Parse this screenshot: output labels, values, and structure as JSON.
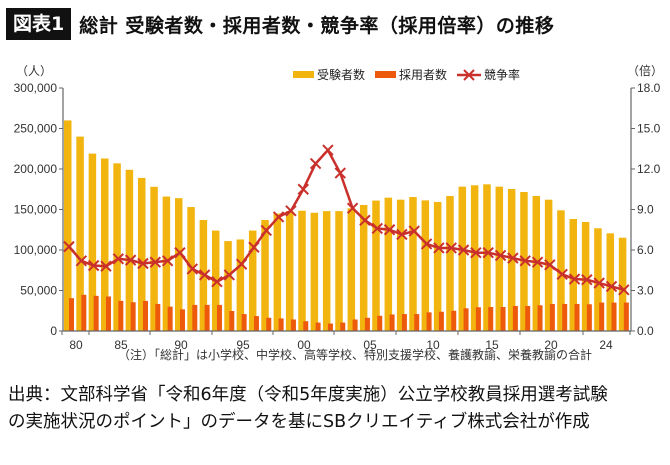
{
  "header": {
    "badge": "図表1",
    "title": "総計 受験者数・採用者数・競争率（採用倍率）の推移"
  },
  "axes": {
    "left_unit": "（人）",
    "right_unit": "（倍）",
    "left_ticks": [
      "0",
      "50,000",
      "100,000",
      "150,000",
      "200,000",
      "250,000",
      "300,000"
    ],
    "right_ticks": [
      "0.0",
      "3.0",
      "6.0",
      "9.0",
      "12.0",
      "15.0",
      "18.0"
    ],
    "x_labels": [
      "80",
      "85",
      "90",
      "95",
      "00",
      "05",
      "10",
      "15",
      "20",
      "24"
    ]
  },
  "legend": {
    "applicants": "受験者数",
    "hires": "採用者数",
    "ratio": "競争率"
  },
  "colors": {
    "applicants": "#F2B40F",
    "hires": "#EE5A0C",
    "ratio": "#C9302C",
    "axis": "#666666"
  },
  "note": "（注）「総計」は小学校、中学校、高等学校、特別支援学校、養護教諭、栄養教諭の合計",
  "source": {
    "line1": "出典：文部科学省「令和6年度（令和5年度実施）公立学校教員採用選考試験",
    "line2": "の実施状況のポイント」のデータを基にSBクリエイティブ株式会社が作成"
  },
  "chart_data": {
    "type": "bar",
    "title": "総計 受験者数・採用者数・競争率（採用倍率）の推移",
    "xlabel": "",
    "ylabel": "人",
    "y2label": "倍",
    "ylim": [
      0,
      300000
    ],
    "y2lim": [
      0,
      18
    ],
    "grid": false,
    "legend_position": "top-right",
    "categories": [
      "1979",
      "1980",
      "1981",
      "1982",
      "1983",
      "1984",
      "1985",
      "1986",
      "1987",
      "1988",
      "1989",
      "1990",
      "1991",
      "1992",
      "1993",
      "1994",
      "1995",
      "1996",
      "1997",
      "1998",
      "1999",
      "2000",
      "2001",
      "2002",
      "2003",
      "2004",
      "2005",
      "2006",
      "2007",
      "2008",
      "2009",
      "2010",
      "2011",
      "2012",
      "2013",
      "2014",
      "2015",
      "2016",
      "2017",
      "2018",
      "2019",
      "2020",
      "2021",
      "2022",
      "2023",
      "2024"
    ],
    "x_tick_labels": [
      "80",
      "85",
      "90",
      "95",
      "00",
      "05",
      "10",
      "15",
      "20",
      "24"
    ],
    "series": [
      {
        "name": "受験者数",
        "type": "bar",
        "axis": "left",
        "values": [
          260000,
          240000,
          219000,
          213000,
          207000,
          199000,
          189000,
          178000,
          166000,
          164000,
          153000,
          137000,
          124000,
          111000,
          113000,
          124000,
          137000,
          145000,
          148000,
          148500,
          146000,
          148000,
          148000,
          151500,
          155600,
          161000,
          164600,
          162100,
          165400,
          161300,
          159300,
          166700,
          178200,
          179900,
          181100,
          178200,
          175300,
          171600,
          166700,
          162100,
          149000,
          138300,
          134600,
          126800,
          120600,
          115200
        ]
      },
      {
        "name": "採用者数",
        "type": "bar",
        "axis": "left",
        "values": [
          40500,
          44700,
          43400,
          42600,
          37200,
          35500,
          37200,
          33400,
          30100,
          26700,
          32200,
          32200,
          32200,
          24700,
          20900,
          18400,
          16300,
          15500,
          14200,
          12100,
          10400,
          9200,
          10400,
          14200,
          16300,
          18800,
          20400,
          20900,
          20900,
          23000,
          23800,
          25000,
          28000,
          29300,
          29600,
          29600,
          30900,
          30900,
          31700,
          33400,
          33400,
          33400,
          33000,
          35100,
          35100,
          35100
        ]
      },
      {
        "name": "競争率",
        "type": "line",
        "axis": "right",
        "values": [
          6.25,
          5.2,
          4.85,
          4.8,
          5.35,
          5.25,
          5.0,
          5.1,
          5.2,
          5.8,
          4.6,
          4.15,
          3.65,
          4.15,
          4.95,
          6.2,
          7.45,
          8.45,
          8.9,
          10.5,
          12.4,
          13.4,
          11.7,
          9.1,
          8.2,
          7.6,
          7.5,
          7.15,
          7.4,
          6.45,
          6.15,
          6.15,
          6.0,
          5.8,
          5.8,
          5.6,
          5.4,
          5.2,
          5.1,
          4.9,
          4.2,
          3.85,
          3.8,
          3.55,
          3.3,
          3.05
        ]
      }
    ]
  }
}
